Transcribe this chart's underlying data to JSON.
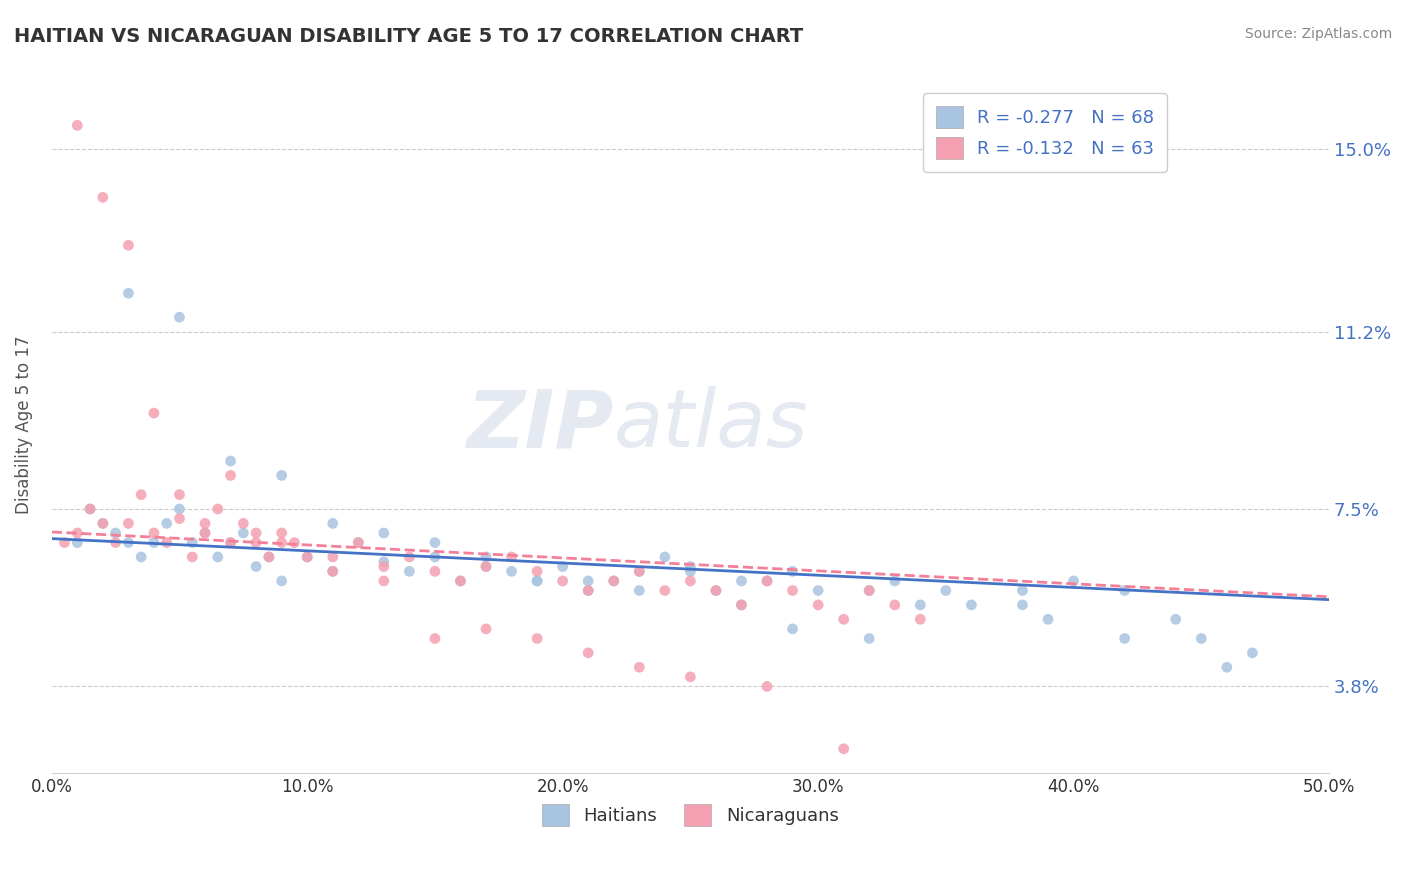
{
  "title": "HAITIAN VS NICARAGUAN DISABILITY AGE 5 TO 17 CORRELATION CHART",
  "source_text": "Source: ZipAtlas.com",
  "ylabel": "Disability Age 5 to 17",
  "xlim": [
    0.0,
    0.5
  ],
  "ylim": [
    0.02,
    0.165
  ],
  "xticklabels": [
    "0.0%",
    "10.0%",
    "20.0%",
    "30.0%",
    "40.0%",
    "50.0%"
  ],
  "xtick_vals": [
    0.0,
    0.1,
    0.2,
    0.3,
    0.4,
    0.5
  ],
  "ytick_vals": [
    0.038,
    0.075,
    0.112,
    0.15
  ],
  "ytick_labels": [
    "3.8%",
    "7.5%",
    "11.2%",
    "15.0%"
  ],
  "haitian_R": -0.277,
  "haitian_N": 68,
  "nicaraguan_R": -0.132,
  "nicaraguan_N": 63,
  "haitian_color": "#a8c4e0",
  "nicaraguan_color": "#f4a0b0",
  "haitian_line_color": "#4472c4",
  "nicaraguan_line_color": "#f48098",
  "legend_label_haitian": "Haitians",
  "legend_label_nicaraguan": "Nicaraguans",
  "background_color": "#ffffff",
  "grid_color": "#cccccc",
  "watermark_zip": "ZIP",
  "watermark_atlas": "atlas",
  "title_color": "#333333",
  "axis_label_color": "#4472c4",
  "haitian_x": [
    0.01,
    0.015,
    0.02,
    0.025,
    0.03,
    0.035,
    0.04,
    0.045,
    0.05,
    0.055,
    0.06,
    0.065,
    0.07,
    0.075,
    0.08,
    0.085,
    0.09,
    0.1,
    0.11,
    0.12,
    0.13,
    0.14,
    0.15,
    0.16,
    0.17,
    0.18,
    0.19,
    0.2,
    0.21,
    0.22,
    0.23,
    0.24,
    0.25,
    0.26,
    0.27,
    0.28,
    0.29,
    0.3,
    0.32,
    0.33,
    0.34,
    0.35,
    0.36,
    0.38,
    0.39,
    0.4,
    0.42,
    0.44,
    0.45,
    0.47,
    0.03,
    0.05,
    0.07,
    0.09,
    0.11,
    0.13,
    0.15,
    0.17,
    0.19,
    0.21,
    0.23,
    0.25,
    0.27,
    0.29,
    0.32,
    0.38,
    0.42,
    0.46
  ],
  "haitian_y": [
    0.068,
    0.075,
    0.072,
    0.07,
    0.068,
    0.065,
    0.068,
    0.072,
    0.075,
    0.068,
    0.07,
    0.065,
    0.068,
    0.07,
    0.063,
    0.065,
    0.06,
    0.065,
    0.062,
    0.068,
    0.064,
    0.062,
    0.065,
    0.06,
    0.063,
    0.062,
    0.06,
    0.063,
    0.058,
    0.06,
    0.062,
    0.065,
    0.063,
    0.058,
    0.06,
    0.06,
    0.062,
    0.058,
    0.058,
    0.06,
    0.055,
    0.058,
    0.055,
    0.058,
    0.052,
    0.06,
    0.058,
    0.052,
    0.048,
    0.045,
    0.12,
    0.115,
    0.085,
    0.082,
    0.072,
    0.07,
    0.068,
    0.065,
    0.06,
    0.06,
    0.058,
    0.062,
    0.055,
    0.05,
    0.048,
    0.055,
    0.048,
    0.042
  ],
  "nicaraguan_x": [
    0.005,
    0.01,
    0.015,
    0.02,
    0.025,
    0.03,
    0.035,
    0.04,
    0.045,
    0.05,
    0.055,
    0.06,
    0.065,
    0.07,
    0.075,
    0.08,
    0.085,
    0.09,
    0.095,
    0.1,
    0.11,
    0.12,
    0.13,
    0.14,
    0.15,
    0.16,
    0.17,
    0.18,
    0.19,
    0.2,
    0.21,
    0.22,
    0.23,
    0.24,
    0.25,
    0.26,
    0.27,
    0.28,
    0.29,
    0.3,
    0.31,
    0.32,
    0.33,
    0.34,
    0.01,
    0.02,
    0.03,
    0.04,
    0.05,
    0.06,
    0.07,
    0.08,
    0.09,
    0.11,
    0.13,
    0.15,
    0.17,
    0.19,
    0.21,
    0.23,
    0.25,
    0.28,
    0.31
  ],
  "nicaraguan_y": [
    0.068,
    0.07,
    0.075,
    0.072,
    0.068,
    0.072,
    0.078,
    0.07,
    0.068,
    0.073,
    0.065,
    0.07,
    0.075,
    0.068,
    0.072,
    0.068,
    0.065,
    0.07,
    0.068,
    0.065,
    0.065,
    0.068,
    0.063,
    0.065,
    0.062,
    0.06,
    0.063,
    0.065,
    0.062,
    0.06,
    0.058,
    0.06,
    0.062,
    0.058,
    0.06,
    0.058,
    0.055,
    0.06,
    0.058,
    0.055,
    0.052,
    0.058,
    0.055,
    0.052,
    0.155,
    0.14,
    0.13,
    0.095,
    0.078,
    0.072,
    0.082,
    0.07,
    0.068,
    0.062,
    0.06,
    0.048,
    0.05,
    0.048,
    0.045,
    0.042,
    0.04,
    0.038,
    0.025
  ]
}
